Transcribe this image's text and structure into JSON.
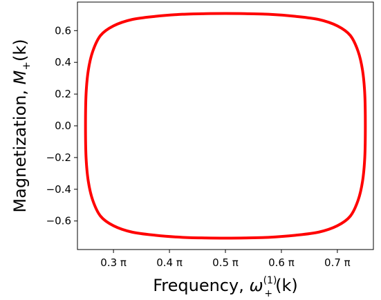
{
  "chart_data": {
    "type": "line",
    "xlabel": "Frequency, ",
    "xlabel_math": {
      "symbol": "ω",
      "sub": "+",
      "sup": "(1)",
      "arg": "(k)"
    },
    "ylabel": "Magnetization, ",
    "ylabel_math": {
      "symbol": "M",
      "sub": "+",
      "arg": "(k)"
    },
    "xlim": [
      0.2356,
      0.7644
    ],
    "ylim": [
      -0.78,
      0.78
    ],
    "x_ticks": [
      0.3,
      0.4,
      0.5,
      0.6,
      0.7
    ],
    "x_tick_labels": [
      "0.3 π",
      "0.4 π",
      "0.5 π",
      "0.6 π",
      "0.7 π"
    ],
    "y_ticks": [
      -0.6,
      -0.4,
      -0.2,
      0.0,
      0.2,
      0.4,
      0.6
    ],
    "y_tick_labels": [
      "−0.6",
      "−0.4",
      "−0.2",
      "0.0",
      "0.2",
      "0.4",
      "0.6"
    ],
    "x_unit": "π",
    "grid": false,
    "series": [
      {
        "color": "#ff0000",
        "closed": true,
        "x": [
          0.75,
          0.749,
          0.745,
          0.737,
          0.723,
          0.7,
          0.667,
          0.625,
          0.577,
          0.535,
          0.5,
          0.465,
          0.423,
          0.375,
          0.333,
          0.3,
          0.277,
          0.263,
          0.255,
          0.251,
          0.25,
          0.251,
          0.255,
          0.263,
          0.277,
          0.3,
          0.333,
          0.375,
          0.423,
          0.465,
          0.5,
          0.535,
          0.577,
          0.625,
          0.667,
          0.7,
          0.723,
          0.737,
          0.745,
          0.749,
          0.75
        ],
        "y": [
          0.0,
          0.2,
          0.35,
          0.47,
          0.57,
          0.63,
          0.67,
          0.69,
          0.703,
          0.707,
          0.708,
          0.707,
          0.703,
          0.69,
          0.67,
          0.63,
          0.57,
          0.47,
          0.35,
          0.2,
          0.0,
          -0.2,
          -0.35,
          -0.47,
          -0.57,
          -0.63,
          -0.67,
          -0.69,
          -0.703,
          -0.707,
          -0.708,
          -0.707,
          -0.703,
          -0.69,
          -0.67,
          -0.63,
          -0.57,
          -0.47,
          -0.35,
          -0.2,
          0.0
        ]
      }
    ]
  }
}
